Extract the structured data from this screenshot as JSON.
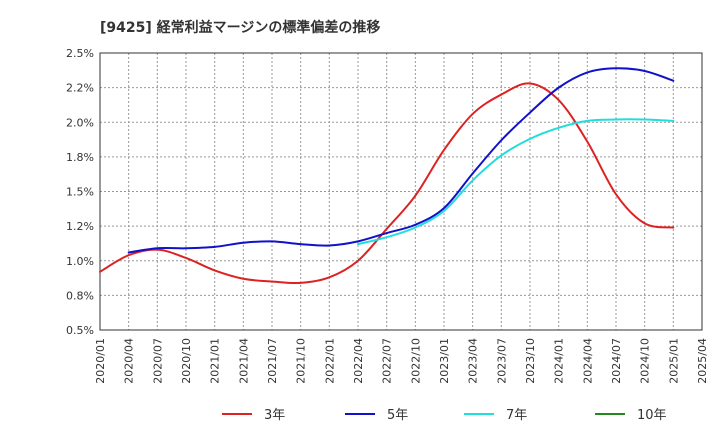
{
  "chart_data": {
    "type": "line",
    "title": "[9425]  経常利益マージンの標準偏差の推移",
    "xlabel": "",
    "ylabel": "",
    "x_tick_labels": [
      "2020/01",
      "2020/04",
      "2020/07",
      "2020/10",
      "2021/01",
      "2021/04",
      "2021/07",
      "2021/10",
      "2022/01",
      "2022/04",
      "2022/07",
      "2022/10",
      "2023/01",
      "2023/04",
      "2023/07",
      "2023/10",
      "2024/01",
      "2024/04",
      "2024/07",
      "2024/10",
      "2025/01",
      "2025/04"
    ],
    "y_tick_labels": [
      "0.5%",
      "0.8%",
      "1.0%",
      "1.2%",
      "1.5%",
      "1.8%",
      "2.0%",
      "2.2%",
      "2.5%"
    ],
    "ylim": [
      0.5,
      2.5
    ],
    "grid": true,
    "legend_position": "bottom",
    "series": [
      {
        "name": "3年",
        "color": "#dd2222",
        "points": [
          [
            "2020/01",
            0.92
          ],
          [
            "2020/04",
            1.04
          ],
          [
            "2020/07",
            1.08
          ],
          [
            "2020/10",
            1.02
          ],
          [
            "2021/01",
            0.93
          ],
          [
            "2021/04",
            0.87
          ],
          [
            "2021/07",
            0.85
          ],
          [
            "2021/10",
            0.84
          ],
          [
            "2022/01",
            0.88
          ],
          [
            "2022/04",
            1.0
          ],
          [
            "2022/07",
            1.23
          ],
          [
            "2022/10",
            1.47
          ],
          [
            "2023/01",
            1.8
          ],
          [
            "2023/04",
            2.06
          ],
          [
            "2023/07",
            2.2
          ],
          [
            "2023/10",
            2.28
          ],
          [
            "2024/01",
            2.16
          ],
          [
            "2024/04",
            1.86
          ],
          [
            "2024/07",
            1.48
          ],
          [
            "2024/10",
            1.27
          ],
          [
            "2025/01",
            1.24
          ]
        ]
      },
      {
        "name": "5年",
        "color": "#1111cc",
        "points": [
          [
            "2020/04",
            1.06
          ],
          [
            "2020/07",
            1.09
          ],
          [
            "2020/10",
            1.09
          ],
          [
            "2021/01",
            1.1
          ],
          [
            "2021/04",
            1.13
          ],
          [
            "2021/07",
            1.14
          ],
          [
            "2021/10",
            1.12
          ],
          [
            "2022/01",
            1.11
          ],
          [
            "2022/04",
            1.14
          ],
          [
            "2022/07",
            1.2
          ],
          [
            "2022/10",
            1.26
          ],
          [
            "2023/01",
            1.38
          ],
          [
            "2023/04",
            1.63
          ],
          [
            "2023/07",
            1.87
          ],
          [
            "2023/10",
            2.07
          ],
          [
            "2024/01",
            2.25
          ],
          [
            "2024/04",
            2.36
          ],
          [
            "2024/07",
            2.39
          ],
          [
            "2024/10",
            2.37
          ],
          [
            "2025/01",
            2.3
          ]
        ]
      },
      {
        "name": "7年",
        "color": "#22dddd",
        "points": [
          [
            "2022/04",
            1.12
          ],
          [
            "2022/07",
            1.17
          ],
          [
            "2022/10",
            1.24
          ],
          [
            "2023/01",
            1.36
          ],
          [
            "2023/04",
            1.58
          ],
          [
            "2023/07",
            1.76
          ],
          [
            "2023/10",
            1.88
          ],
          [
            "2024/01",
            1.96
          ],
          [
            "2024/04",
            2.01
          ],
          [
            "2024/07",
            2.02
          ],
          [
            "2024/10",
            2.02
          ],
          [
            "2025/01",
            2.01
          ]
        ]
      },
      {
        "name": "10年",
        "color": "#228822",
        "points": []
      }
    ]
  }
}
